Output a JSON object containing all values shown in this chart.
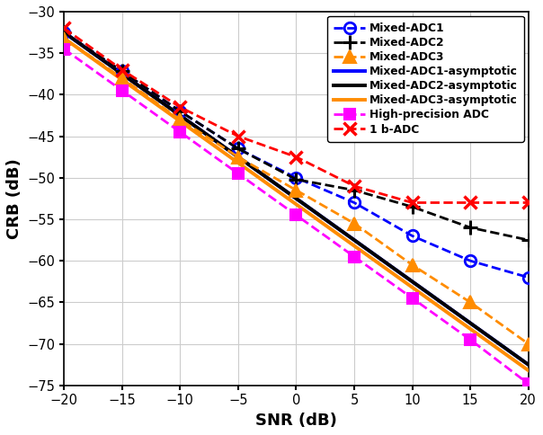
{
  "snr": [
    -20,
    -15,
    -10,
    -5,
    0,
    5,
    10,
    15,
    20
  ],
  "mixed_adc1": [
    -32.5,
    -37.2,
    -42.0,
    -46.5,
    -50.0,
    -53.0,
    -57.0,
    -60.0,
    -62.0
  ],
  "mixed_adc2": [
    -32.5,
    -37.2,
    -42.0,
    -46.5,
    -50.2,
    -51.5,
    -53.5,
    -56.0,
    -57.5
  ],
  "mixed_adc3": [
    -33.2,
    -38.0,
    -43.0,
    -47.5,
    -51.5,
    -55.5,
    -60.5,
    -65.0,
    -70.0
  ],
  "mixed_adc1_asym": [
    -32.5,
    -37.5,
    -42.5,
    -47.5,
    -52.5,
    -57.5,
    -62.5,
    -67.5,
    -72.5
  ],
  "mixed_adc2_asym": [
    -32.5,
    -37.5,
    -42.5,
    -47.5,
    -52.5,
    -57.5,
    -62.5,
    -67.5,
    -72.5
  ],
  "mixed_adc3_asym": [
    -33.2,
    -38.2,
    -43.2,
    -48.2,
    -53.2,
    -58.2,
    -63.2,
    -68.2,
    -73.2
  ],
  "high_precision": [
    -34.5,
    -39.5,
    -44.5,
    -49.5,
    -54.5,
    -59.5,
    -64.5,
    -69.5,
    -74.8
  ],
  "one_bit_adc": [
    -32.0,
    -37.0,
    -41.5,
    -45.0,
    -47.5,
    -51.0,
    -53.0,
    -53.0,
    -53.0
  ],
  "color_blue": "#0000FF",
  "color_black": "#000000",
  "color_orange": "#FF8C00",
  "color_magenta": "#FF00FF",
  "color_red": "#FF0000",
  "xlabel": "SNR (dB)",
  "ylabel": "CRB (dB)",
  "xlim": [
    -20,
    20
  ],
  "ylim": [
    -75,
    -30
  ],
  "xticks": [
    -20,
    -15,
    -10,
    -5,
    0,
    5,
    10,
    15,
    20
  ],
  "yticks": [
    -75,
    -70,
    -65,
    -60,
    -55,
    -50,
    -45,
    -40,
    -35,
    -30
  ],
  "legend_labels": [
    "Mixed-ADC1",
    "Mixed-ADC2",
    "Mixed-ADC3",
    "Mixed-ADC1-asymptotic",
    "Mixed-ADC2-asymptotic",
    "Mixed-ADC3-asymptotic",
    "High-precision ADC",
    "1 b-ADC"
  ]
}
